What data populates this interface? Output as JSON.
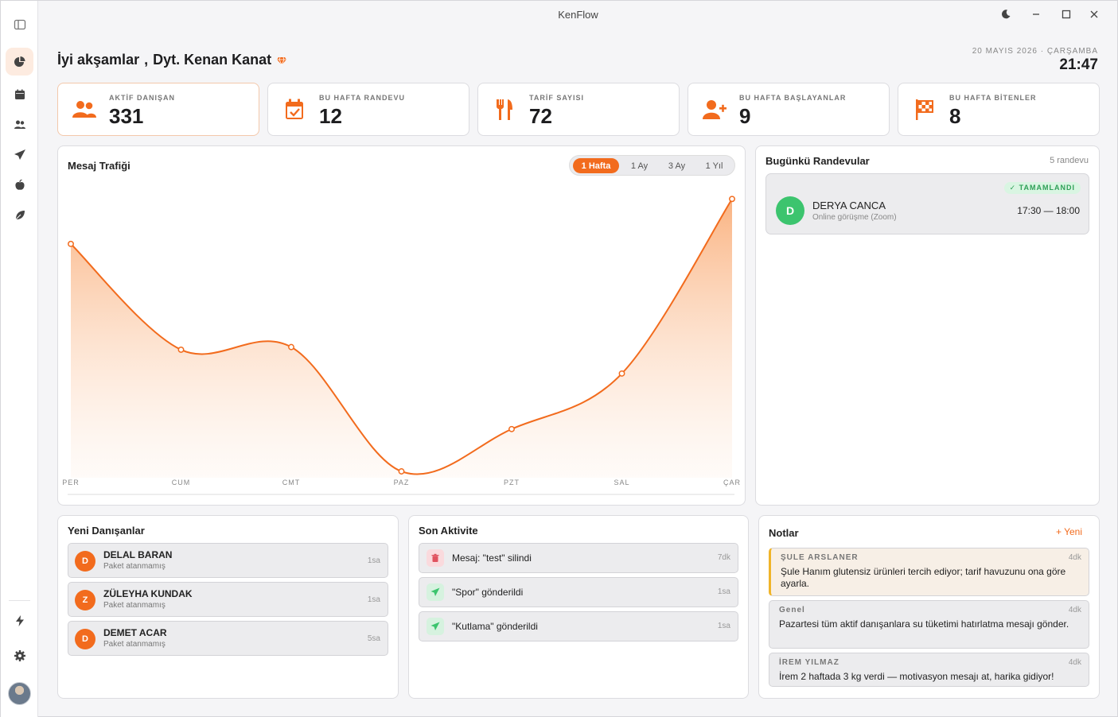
{
  "window": {
    "title": "KenFlow"
  },
  "header": {
    "greeting": "İyi akşamlar",
    "separator": ",",
    "user_name": "Dyt. Kenan Kanat",
    "date": "20 MAYIS 2026 · ÇARŞAMBA",
    "time": "21:47"
  },
  "sidebar": {
    "items": [
      {
        "icon": "panel-toggle-icon"
      },
      {
        "icon": "pie-chart-icon",
        "active": true
      },
      {
        "icon": "calendar-icon"
      },
      {
        "icon": "users-icon"
      },
      {
        "icon": "send-icon"
      },
      {
        "icon": "apple-icon"
      },
      {
        "icon": "leaf-icon"
      },
      {
        "icon": "bolt-icon"
      },
      {
        "icon": "gear-icon"
      }
    ]
  },
  "stats": [
    {
      "label": "AKTİF DANIŞAN",
      "value": "331",
      "icon": "users-icon"
    },
    {
      "label": "BU HAFTA RANDEVU",
      "value": "12",
      "icon": "calendar-check-icon"
    },
    {
      "label": "TARİF SAYISI",
      "value": "72",
      "icon": "utensils-icon"
    },
    {
      "label": "BU HAFTA BAŞLAYANLAR",
      "value": "9",
      "icon": "user-plus-icon"
    },
    {
      "label": "BU HAFTA BİTENLER",
      "value": "8",
      "icon": "checkered-flag-icon"
    }
  ],
  "traffic": {
    "title": "Mesaj Trafiği",
    "ranges": [
      "1 Hafta",
      "1 Ay",
      "3 Ay",
      "1 Yıl"
    ],
    "active_range": "1 Hafta"
  },
  "chart_data": {
    "type": "area",
    "title": "Mesaj Trafiği",
    "categories": [
      "PER",
      "CUM",
      "CMT",
      "PAZ",
      "PZT",
      "SAL",
      "ÇAR"
    ],
    "values": [
      86,
      46,
      47,
      0,
      16,
      37,
      103
    ],
    "ylim": [
      0,
      110
    ],
    "grid": false,
    "color": "#f26b1d"
  },
  "appointments": {
    "title": "Bugünkü Randevular",
    "count_label": "5 randevu",
    "items": [
      {
        "initial": "D",
        "name": "DERYA CANCA",
        "type": "Online görüşme (Zoom)",
        "status": "✓ TAMAMLANDI",
        "time": "17:30 — 18:00"
      }
    ]
  },
  "new_clients": {
    "title": "Yeni Danışanlar",
    "items": [
      {
        "initial": "D",
        "name": "DELAL BARAN",
        "package": "Paket atanmamış",
        "ago": "1sa"
      },
      {
        "initial": "Z",
        "name": "ZÜLEYHA KUNDAK",
        "package": "Paket atanmamış",
        "ago": "1sa"
      },
      {
        "initial": "D",
        "name": "DEMET ACAR",
        "package": "Paket atanmamış",
        "ago": "5sa"
      }
    ]
  },
  "activity": {
    "title": "Son Aktivite",
    "items": [
      {
        "icon": "trash-icon",
        "text": "Mesaj: \"test\" silindi",
        "ago": "7dk"
      },
      {
        "icon": "send-icon",
        "text": "\"Spor\" gönderildi",
        "ago": "1sa"
      },
      {
        "icon": "send-icon",
        "text": "\"Kutlama\" gönderildi",
        "ago": "1sa"
      }
    ]
  },
  "notes": {
    "title": "Notlar",
    "new_label": "+ Yeni",
    "items": [
      {
        "author": "ŞULE ARSLANER",
        "ago": "4dk",
        "text": "Şule Hanım glutensiz ürünleri tercih ediyor; tarif havuzunu ona göre ayarla."
      },
      {
        "author": "Genel",
        "ago": "4dk",
        "text": "Pazartesi tüm aktif danışanlara su tüketimi hatırlatma mesajı gönder."
      },
      {
        "author": "İREM YILMAZ",
        "ago": "4dk",
        "text": "İrem 2 haftada 3 kg verdi — motivasyon mesajı at, harika gidiyor!"
      }
    ]
  },
  "colors": {
    "accent": "#f26b1d",
    "success": "#3cc46e",
    "danger": "#e0535f"
  }
}
